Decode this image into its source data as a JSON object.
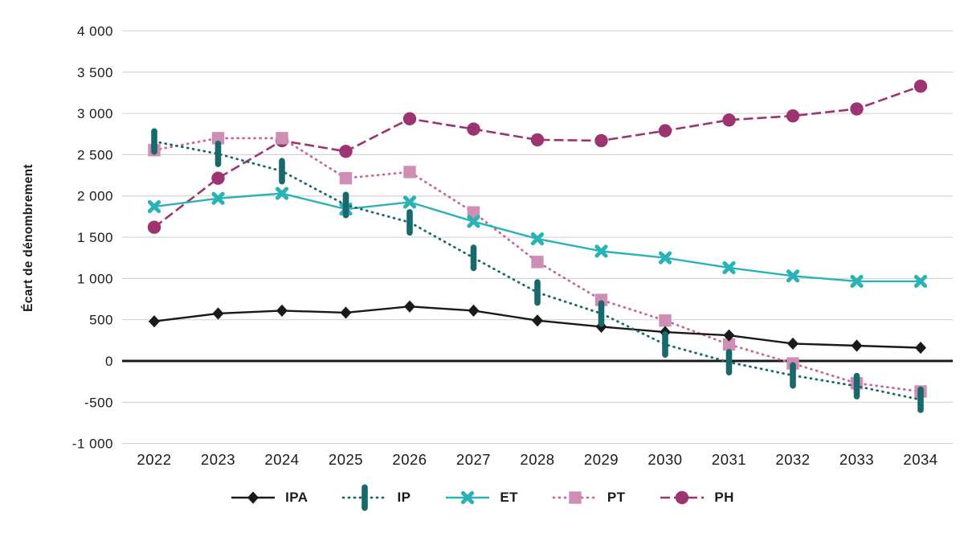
{
  "chart_data": {
    "type": "line",
    "title": "",
    "xlabel": "",
    "ylabel": "Écart de dénombrement",
    "categories": [
      "2022",
      "2023",
      "2024",
      "2025",
      "2026",
      "2027",
      "2028",
      "2029",
      "2030",
      "2031",
      "2032",
      "2033",
      "2034"
    ],
    "ylim": [
      -1000,
      4000
    ],
    "yticks": [
      4000,
      3500,
      3000,
      2500,
      2000,
      1500,
      1000,
      500,
      0,
      -500,
      -1000
    ],
    "ytick_labels": [
      "4 000",
      "3 500",
      "3 000",
      "2 500",
      "2 000",
      "1 500",
      "1 000",
      "500",
      "0",
      "-500",
      "-1 000"
    ],
    "grid": "horizontal",
    "gridline_color": "#d4d4d4",
    "zero_line_color": "#1a1a1a",
    "legend_position": "bottom",
    "series": [
      {
        "name": "IPA",
        "color": "#1a1a1a",
        "line_style": "solid",
        "marker": "diamond",
        "values": [
          480,
          575,
          610,
          585,
          660,
          610,
          490,
          415,
          350,
          310,
          210,
          185,
          160
        ]
      },
      {
        "name": "IP",
        "color": "#17696c",
        "line_style": "dotted",
        "marker": "vertical-bar",
        "values": [
          2660,
          2510,
          2300,
          1890,
          1680,
          1250,
          830,
          575,
          200,
          -15,
          -175,
          -305,
          -470
        ]
      },
      {
        "name": "ET",
        "color": "#2ab3b6",
        "line_style": "solid",
        "marker": "x-cross",
        "values": [
          1870,
          1970,
          2030,
          1840,
          1925,
          1690,
          1480,
          1330,
          1250,
          1130,
          1030,
          965,
          965
        ]
      },
      {
        "name": "PT",
        "color": "#cf8eb5",
        "line_color": "#c9679a",
        "line_style": "dotted",
        "marker": "square",
        "values": [
          2555,
          2700,
          2700,
          2215,
          2290,
          1800,
          1200,
          740,
          490,
          200,
          -30,
          -270,
          -370
        ]
      },
      {
        "name": "PH",
        "color": "#9b3471",
        "line_style": "dashed",
        "marker": "circle",
        "values": [
          1620,
          2215,
          2670,
          2540,
          2935,
          2810,
          2680,
          2670,
          2790,
          2920,
          2970,
          3055,
          3330
        ]
      }
    ]
  }
}
